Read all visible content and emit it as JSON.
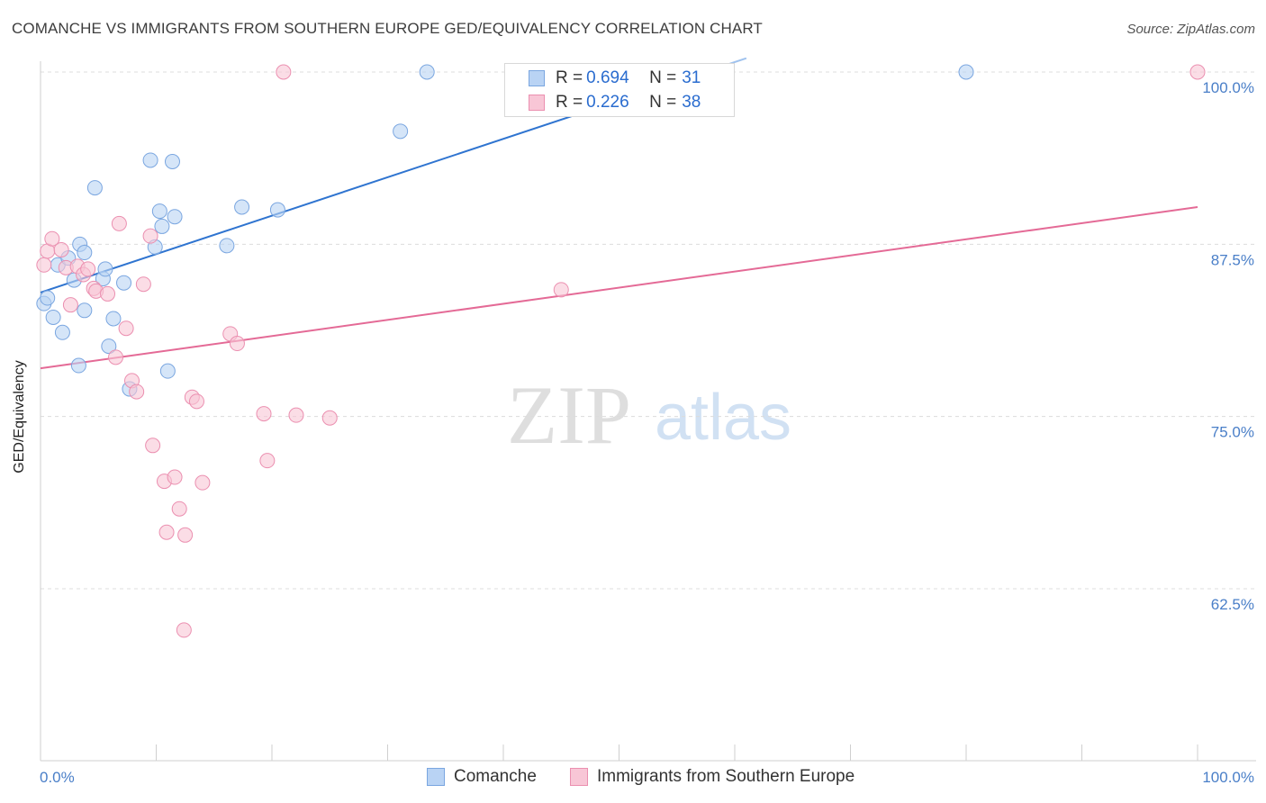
{
  "title": "COMANCHE VS IMMIGRANTS FROM SOUTHERN EUROPE GED/EQUIVALENCY CORRELATION CHART",
  "source": "Source: ZipAtlas.com",
  "watermark": {
    "zip": "ZIP",
    "atlas": "atlas"
  },
  "colors": {
    "blue_fill": "#b9d3f4",
    "blue_stroke": "#7aa6e0",
    "blue_line": "#2f74d0",
    "pink_fill": "#f8c6d6",
    "pink_stroke": "#eb8fb0",
    "pink_line": "#e46a96",
    "grid": "#dcdcdc",
    "tick_text": "#4a7fc8"
  },
  "legend": {
    "rows": [
      {
        "r_label": "R = ",
        "r_value": "0.694",
        "n_label": "N = ",
        "n_value": "31"
      },
      {
        "r_label": "R = ",
        "r_value": "0.226",
        "n_label": "N = ",
        "n_value": "38"
      }
    ]
  },
  "chart_data": {
    "type": "scatter",
    "title": "COMANCHE VS IMMIGRANTS FROM SOUTHERN EUROPE GED/EQUIVALENCY CORRELATION CHART",
    "xlabel": "",
    "ylabel": "GED/Equivalency",
    "xlim": [
      0,
      100
    ],
    "ylim": [
      51.5,
      101.5
    ],
    "x_tick_labels": [
      "0.0%",
      "100.0%"
    ],
    "y_ticks": [
      {
        "value": 62.5,
        "label": "62.5%"
      },
      {
        "value": 75.0,
        "label": "75.0%"
      },
      {
        "value": 87.5,
        "label": "87.5%"
      },
      {
        "value": 100.0,
        "label": "100.0%"
      }
    ],
    "grid": true,
    "legend_position": "top-center",
    "series": [
      {
        "name": "Comanche",
        "color": "blue",
        "r": 0.694,
        "n": 31,
        "trend": {
          "x0": 0,
          "y0": 84.0,
          "x1": 61,
          "y1": 101.0,
          "dashed_from_x": 58
        },
        "points": [
          [
            0.3,
            83.2
          ],
          [
            0.6,
            83.6
          ],
          [
            1.1,
            82.2
          ],
          [
            1.9,
            81.1
          ],
          [
            1.5,
            86.0
          ],
          [
            2.4,
            86.5
          ],
          [
            2.9,
            84.9
          ],
          [
            3.4,
            87.5
          ],
          [
            3.8,
            86.9
          ],
          [
            3.3,
            78.7
          ],
          [
            3.8,
            82.7
          ],
          [
            4.7,
            91.6
          ],
          [
            5.4,
            85.0
          ],
          [
            5.6,
            85.7
          ],
          [
            5.9,
            80.1
          ],
          [
            6.3,
            82.1
          ],
          [
            7.2,
            84.7
          ],
          [
            7.7,
            77.0
          ],
          [
            9.5,
            93.6
          ],
          [
            9.9,
            87.3
          ],
          [
            10.3,
            89.9
          ],
          [
            10.5,
            88.8
          ],
          [
            11.0,
            78.3
          ],
          [
            11.4,
            93.5
          ],
          [
            11.6,
            89.5
          ],
          [
            16.1,
            87.4
          ],
          [
            17.4,
            90.2
          ],
          [
            20.5,
            90.0
          ],
          [
            31.1,
            95.7
          ],
          [
            33.4,
            100.0
          ],
          [
            80.0,
            100.0
          ]
        ]
      },
      {
        "name": "Immigrants from Southern Europe",
        "color": "pink",
        "r": 0.226,
        "n": 38,
        "trend": {
          "x0": 0,
          "y0": 78.5,
          "x1": 100,
          "y1": 90.2
        },
        "points": [
          [
            0.3,
            86.0
          ],
          [
            0.6,
            87.0
          ],
          [
            1.0,
            87.9
          ],
          [
            1.8,
            87.1
          ],
          [
            2.2,
            85.8
          ],
          [
            2.6,
            83.1
          ],
          [
            3.2,
            85.9
          ],
          [
            3.7,
            85.3
          ],
          [
            4.1,
            85.7
          ],
          [
            4.6,
            84.3
          ],
          [
            4.8,
            84.1
          ],
          [
            5.8,
            83.9
          ],
          [
            6.5,
            79.3
          ],
          [
            6.8,
            89.0
          ],
          [
            7.4,
            81.4
          ],
          [
            7.9,
            77.6
          ],
          [
            8.3,
            76.8
          ],
          [
            8.9,
            84.6
          ],
          [
            9.5,
            88.1
          ],
          [
            9.7,
            72.9
          ],
          [
            10.7,
            70.3
          ],
          [
            10.9,
            66.6
          ],
          [
            11.6,
            70.6
          ],
          [
            12.0,
            68.3
          ],
          [
            12.5,
            66.4
          ],
          [
            12.4,
            59.5
          ],
          [
            13.1,
            76.4
          ],
          [
            13.5,
            76.1
          ],
          [
            14.0,
            70.2
          ],
          [
            16.4,
            81.0
          ],
          [
            17.0,
            80.3
          ],
          [
            19.3,
            75.2
          ],
          [
            19.6,
            71.8
          ],
          [
            21.0,
            100.0
          ],
          [
            22.1,
            75.1
          ],
          [
            25.0,
            74.9
          ],
          [
            45.0,
            84.2
          ],
          [
            100.0,
            100.0
          ]
        ]
      }
    ]
  },
  "bottom_legend": {
    "series1": "Comanche",
    "series2": "Immigrants from Southern Europe"
  }
}
